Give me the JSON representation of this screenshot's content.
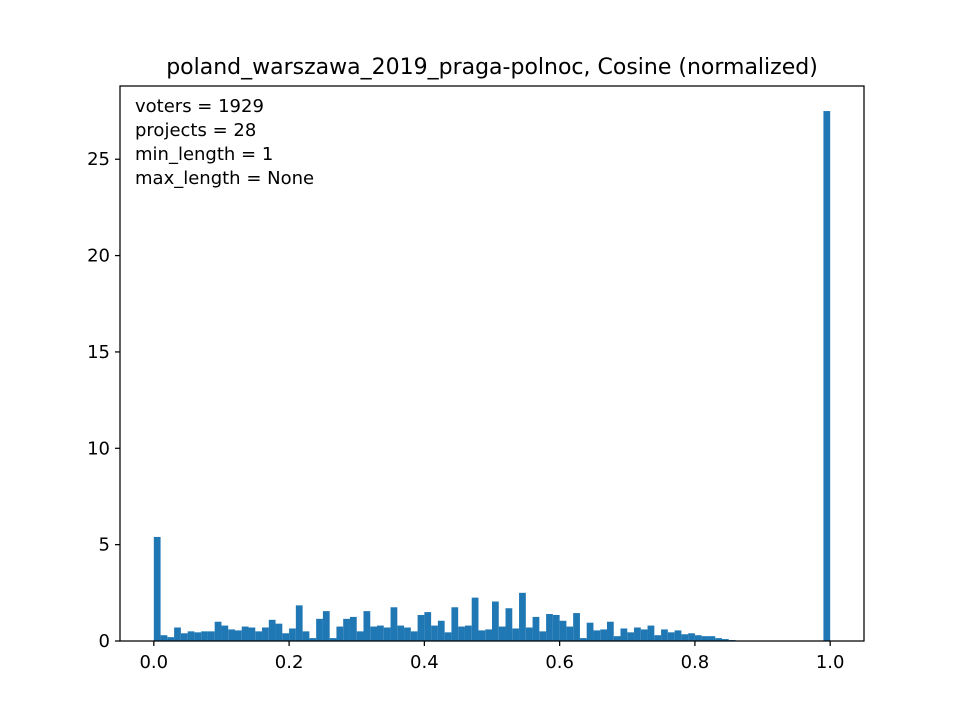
{
  "chart_data": {
    "type": "bar",
    "title": "poland_warszawa_2019_praga-polnoc, Cosine (normalized)",
    "xlabel": "",
    "ylabel": "",
    "xlim": [
      -0.05,
      1.05
    ],
    "ylim": [
      0,
      28.8
    ],
    "bin_width": 0.01,
    "x_ticks": [
      0.0,
      0.2,
      0.4,
      0.6,
      0.8,
      1.0
    ],
    "x_tick_labels": [
      "0.0",
      "0.2",
      "0.4",
      "0.6",
      "0.8",
      "1.0"
    ],
    "y_ticks": [
      0,
      5,
      10,
      15,
      20,
      25
    ],
    "y_tick_labels": [
      "0",
      "5",
      "10",
      "15",
      "20",
      "25"
    ],
    "grid": false,
    "legend": "none",
    "bar_color": "#1f77b4",
    "annotations": [
      "voters = 1929",
      "projects = 28",
      "min_length = 1",
      "max_length = None"
    ],
    "bins": [
      0.0,
      0.01,
      0.02,
      0.03,
      0.04,
      0.05,
      0.06,
      0.07,
      0.08,
      0.09,
      0.1,
      0.11,
      0.12,
      0.13,
      0.14,
      0.15,
      0.16,
      0.17,
      0.18,
      0.19,
      0.2,
      0.21,
      0.22,
      0.23,
      0.24,
      0.25,
      0.26,
      0.27,
      0.28,
      0.29,
      0.3,
      0.31,
      0.32,
      0.33,
      0.34,
      0.35,
      0.36,
      0.37,
      0.38,
      0.39,
      0.4,
      0.41,
      0.42,
      0.43,
      0.44,
      0.45,
      0.46,
      0.47,
      0.48,
      0.49,
      0.5,
      0.51,
      0.52,
      0.53,
      0.54,
      0.55,
      0.56,
      0.57,
      0.58,
      0.59,
      0.6,
      0.61,
      0.62,
      0.63,
      0.64,
      0.65,
      0.66,
      0.67,
      0.68,
      0.69,
      0.7,
      0.71,
      0.72,
      0.73,
      0.74,
      0.75,
      0.76,
      0.77,
      0.78,
      0.79,
      0.8,
      0.81,
      0.82,
      0.83,
      0.84,
      0.85,
      0.86,
      0.87,
      0.88,
      0.89,
      0.9,
      0.91,
      0.92,
      0.93,
      0.94,
      0.95,
      0.96,
      0.97,
      0.98,
      0.99
    ],
    "values": [
      5.4,
      0.3,
      0.2,
      0.7,
      0.4,
      0.5,
      0.45,
      0.5,
      0.5,
      1.0,
      0.8,
      0.6,
      0.55,
      0.75,
      0.7,
      0.5,
      0.7,
      1.1,
      0.9,
      0.4,
      0.65,
      1.85,
      0.5,
      0.15,
      1.15,
      1.55,
      0.15,
      0.75,
      1.15,
      1.25,
      0.5,
      1.55,
      0.75,
      0.8,
      0.7,
      1.75,
      0.8,
      0.7,
      0.5,
      1.35,
      1.5,
      0.8,
      1.05,
      0.45,
      1.75,
      0.75,
      0.8,
      2.25,
      0.55,
      0.6,
      2.05,
      0.75,
      1.7,
      0.65,
      2.5,
      0.7,
      1.25,
      0.5,
      1.4,
      1.35,
      1.05,
      0.75,
      1.45,
      0.15,
      0.95,
      0.55,
      0.6,
      1.0,
      0.25,
      0.65,
      0.45,
      0.7,
      0.6,
      0.8,
      0.3,
      0.6,
      0.45,
      0.55,
      0.35,
      0.4,
      0.3,
      0.25,
      0.25,
      0.15,
      0.1,
      0.05,
      0,
      0,
      0,
      0,
      0,
      0,
      0,
      0,
      0,
      0,
      0,
      0,
      0,
      27.5
    ]
  }
}
